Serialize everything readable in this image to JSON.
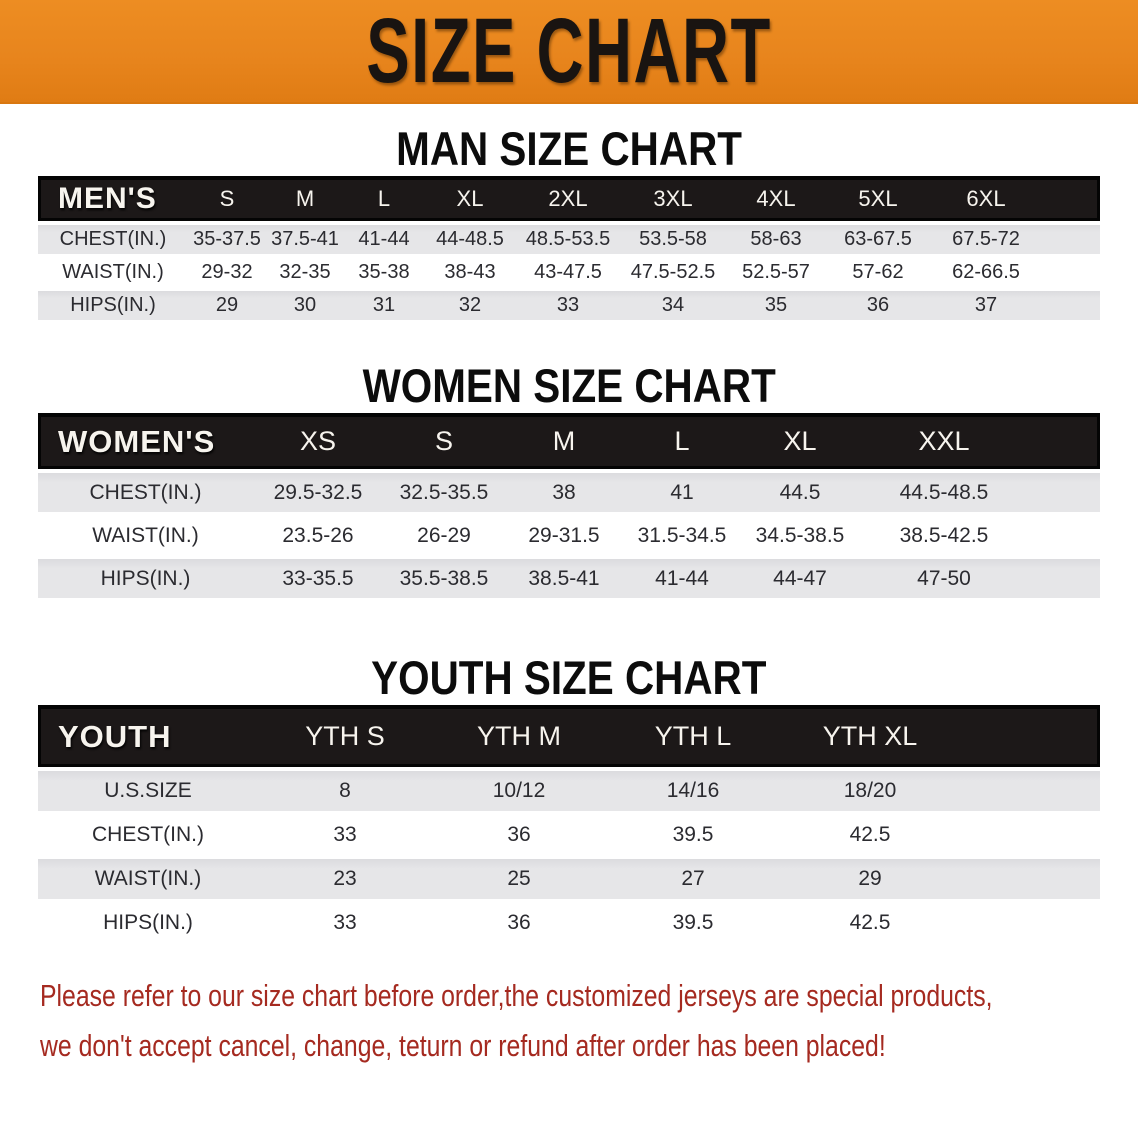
{
  "banner": {
    "title": "SIZE CHART"
  },
  "colors": {
    "banner_orange": "#E8851D",
    "header_bar_black": "#1C1818",
    "row_stripe_gray": "#E6E6E8",
    "disclaimer_red": "#A52A20"
  },
  "sections": {
    "men": {
      "title": "MAN SIZE CHART"
    },
    "women": {
      "title": "WOMEN SIZE CHART"
    },
    "youth": {
      "title": "YOUTH SIZE CHART"
    }
  },
  "tables": {
    "men": {
      "header": [
        "MEN'S",
        "S",
        "M",
        "L",
        "XL",
        "2XL",
        "3XL",
        "4XL",
        "5XL",
        "6XL"
      ],
      "rows": [
        [
          "CHEST(IN.)",
          "35-37.5",
          "37.5-41",
          "41-44",
          "44-48.5",
          "48.5-53.5",
          "53.5-58",
          "58-63",
          "63-67.5",
          "67.5-72"
        ],
        [
          "WAIST(IN.)",
          "29-32",
          "32-35",
          "35-38",
          "38-43",
          "43-47.5",
          "47.5-52.5",
          "52.5-57",
          "57-62",
          "62-66.5"
        ],
        [
          "HIPS(IN.)",
          "29",
          "30",
          "31",
          "32",
          "33",
          "34",
          "35",
          "36",
          "37"
        ]
      ]
    },
    "women": {
      "header": [
        "WOMEN'S",
        "XS",
        "S",
        "M",
        "L",
        "XL",
        "XXL"
      ],
      "rows": [
        [
          "CHEST(IN.)",
          "29.5-32.5",
          "32.5-35.5",
          "38",
          "41",
          "44.5",
          "44.5-48.5"
        ],
        [
          "WAIST(IN.)",
          "23.5-26",
          "26-29",
          "29-31.5",
          "31.5-34.5",
          "34.5-38.5",
          "38.5-42.5"
        ],
        [
          "HIPS(IN.)",
          "33-35.5",
          "35.5-38.5",
          "38.5-41",
          "41-44",
          "44-47",
          "47-50"
        ]
      ]
    },
    "youth": {
      "header": [
        "YOUTH",
        "YTH S",
        "YTH M",
        "YTH L",
        "YTH XL"
      ],
      "rows": [
        [
          "U.S.SIZE",
          "8",
          "10/12",
          "14/16",
          "18/20"
        ],
        [
          "CHEST(IN.)",
          "33",
          "36",
          "39.5",
          "42.5"
        ],
        [
          "WAIST(IN.)",
          "23",
          "25",
          "27",
          "29"
        ],
        [
          "HIPS(IN.)",
          "33",
          "36",
          "39.5",
          "42.5"
        ]
      ]
    }
  },
  "disclaimer": {
    "line1": "Please refer to our size chart before order,the customized jerseys are special products,",
    "line2": "we don't accept cancel, change, teturn or refund after order has been placed!"
  }
}
